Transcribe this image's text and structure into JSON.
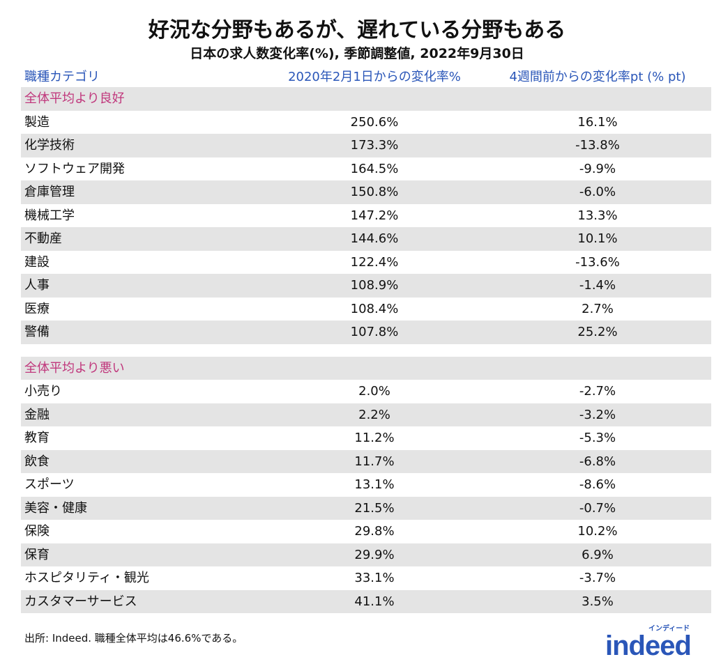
{
  "header": {
    "title": "好況な分野もあるが、遅れている分野もある",
    "subtitle": "日本の求人数変化率(%), 季節調整値, 2022年9月30日"
  },
  "table": {
    "columns": [
      "職種カテゴリ",
      "2020年2月1日からの変化率%",
      "4週間前からの変化率pt (% pt)"
    ],
    "sections": [
      {
        "label": "全体平均より良好",
        "rows": [
          [
            "製造",
            "250.6%",
            "16.1%"
          ],
          [
            "化学技術",
            "173.3%",
            "-13.8%"
          ],
          [
            "ソフトウェア開発",
            "164.5%",
            "-9.9%"
          ],
          [
            "倉庫管理",
            "150.8%",
            "-6.0%"
          ],
          [
            "機械工学",
            "147.2%",
            "13.3%"
          ],
          [
            "不動産",
            "144.6%",
            "10.1%"
          ],
          [
            "建設",
            "122.4%",
            "-13.6%"
          ],
          [
            "人事",
            "108.9%",
            "-1.4%"
          ],
          [
            "医療",
            "108.4%",
            "2.7%"
          ],
          [
            "警備",
            "107.8%",
            "25.2%"
          ]
        ]
      },
      {
        "label": "全体平均より悪い",
        "rows": [
          [
            "小売り",
            "2.0%",
            "-2.7%"
          ],
          [
            "金融",
            "2.2%",
            "-3.2%"
          ],
          [
            "教育",
            "11.2%",
            "-5.3%"
          ],
          [
            "飲食",
            "11.7%",
            "-6.8%"
          ],
          [
            "スポーツ",
            "13.1%",
            "-8.6%"
          ],
          [
            "美容・健康",
            "21.5%",
            "-0.7%"
          ],
          [
            "保険",
            "29.8%",
            "10.2%"
          ],
          [
            "保育",
            "29.9%",
            "6.9%"
          ],
          [
            "ホスピタリティ・観光",
            "33.1%",
            "-3.7%"
          ],
          [
            "カスタマーサービス",
            "41.1%",
            "3.5%"
          ]
        ]
      }
    ]
  },
  "footer": {
    "source": "出所: Indeed. 職種全体平均は46.6%である。",
    "logo": "indeed",
    "logo_kana": "インディード"
  }
}
